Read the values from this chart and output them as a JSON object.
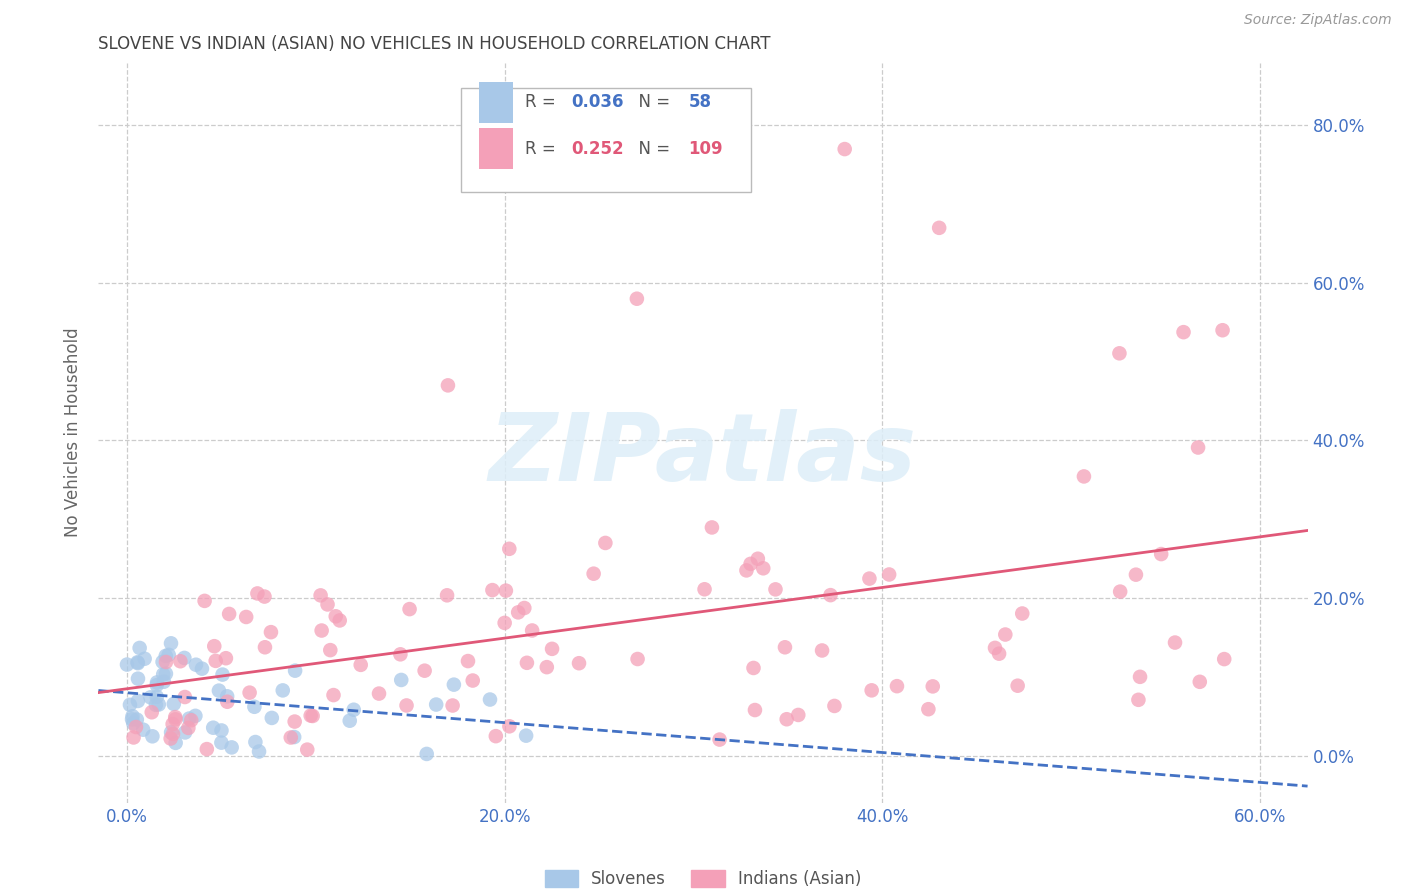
{
  "title": "SLOVENE VS INDIAN (ASIAN) NO VEHICLES IN HOUSEHOLD CORRELATION CHART",
  "source": "Source: ZipAtlas.com",
  "ylabel": "No Vehicles in Household",
  "xmin": -0.015,
  "xmax": 0.625,
  "ymin": -0.06,
  "ymax": 0.88,
  "xtick_vals": [
    0.0,
    0.2,
    0.4,
    0.6
  ],
  "ytick_vals": [
    0.0,
    0.2,
    0.4,
    0.6,
    0.8
  ],
  "slovene_R": 0.036,
  "slovene_N": 58,
  "indian_R": 0.252,
  "indian_N": 109,
  "slovene_color": "#a8c8e8",
  "indian_color": "#f4a0b8",
  "slovene_line_color": "#4472c4",
  "indian_line_color": "#e05878",
  "background_color": "#ffffff",
  "grid_color": "#cccccc",
  "tick_label_color": "#4472c4",
  "watermark_color": "#ddeef8",
  "title_color": "#444444",
  "source_color": "#999999",
  "ylabel_color": "#666666"
}
